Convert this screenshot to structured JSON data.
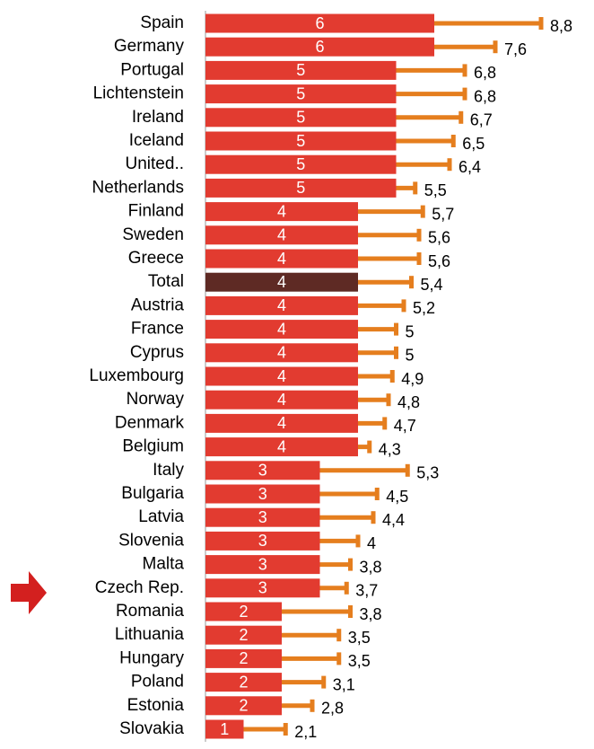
{
  "chart_data": {
    "type": "bar",
    "orientation": "horizontal",
    "categories": [
      "Spain",
      "Germany",
      "Portugal",
      "Lichtenstein",
      "Ireland",
      "Iceland",
      "United..",
      "Netherlands",
      "Finland",
      "Sweden",
      "Greece",
      "Total",
      "Austria",
      "France",
      "Cyprus",
      "Luxembourg",
      "Norway",
      "Denmark",
      "Belgium",
      "Italy",
      "Bulgaria",
      "Latvia",
      "Slovenia",
      "Malta",
      "Czech Rep.",
      "Romania",
      "Lithuania",
      "Hungary",
      "Poland",
      "Estonia",
      "Slovakia"
    ],
    "values": [
      6,
      6,
      5,
      5,
      5,
      5,
      5,
      5,
      4,
      4,
      4,
      4,
      4,
      4,
      4,
      4,
      4,
      4,
      4,
      3,
      3,
      3,
      3,
      3,
      3,
      2,
      2,
      2,
      2,
      2,
      1
    ],
    "ends": [
      8.8,
      7.6,
      6.8,
      6.8,
      6.7,
      6.5,
      6.4,
      5.5,
      5.7,
      5.6,
      5.6,
      5.4,
      5.2,
      5,
      5,
      4.9,
      4.8,
      4.7,
      4.3,
      5.3,
      4.5,
      4.4,
      4,
      3.8,
      3.7,
      3.8,
      3.5,
      3.5,
      3.1,
      2.8,
      2.1
    ],
    "end_labels": [
      "8,8",
      "7,6",
      "6,8",
      "6,8",
      "6,7",
      "6,5",
      "6,4",
      "5,5",
      "5,7",
      "5,6",
      "5,6",
      "5,4",
      "5,2",
      "5",
      "5",
      "4,9",
      "4,8",
      "4,7",
      "4,3",
      "5,3",
      "4,5",
      "4,4",
      "4",
      "3,8",
      "3,7",
      "3,8",
      "3,5",
      "3,5",
      "3,1",
      "2,8",
      "2,1"
    ],
    "color": "#e23b30",
    "highlight": "Total",
    "highlight_color": "#5e2a24",
    "end_color": "#e57e1e",
    "xlim": [
      0,
      10
    ]
  }
}
